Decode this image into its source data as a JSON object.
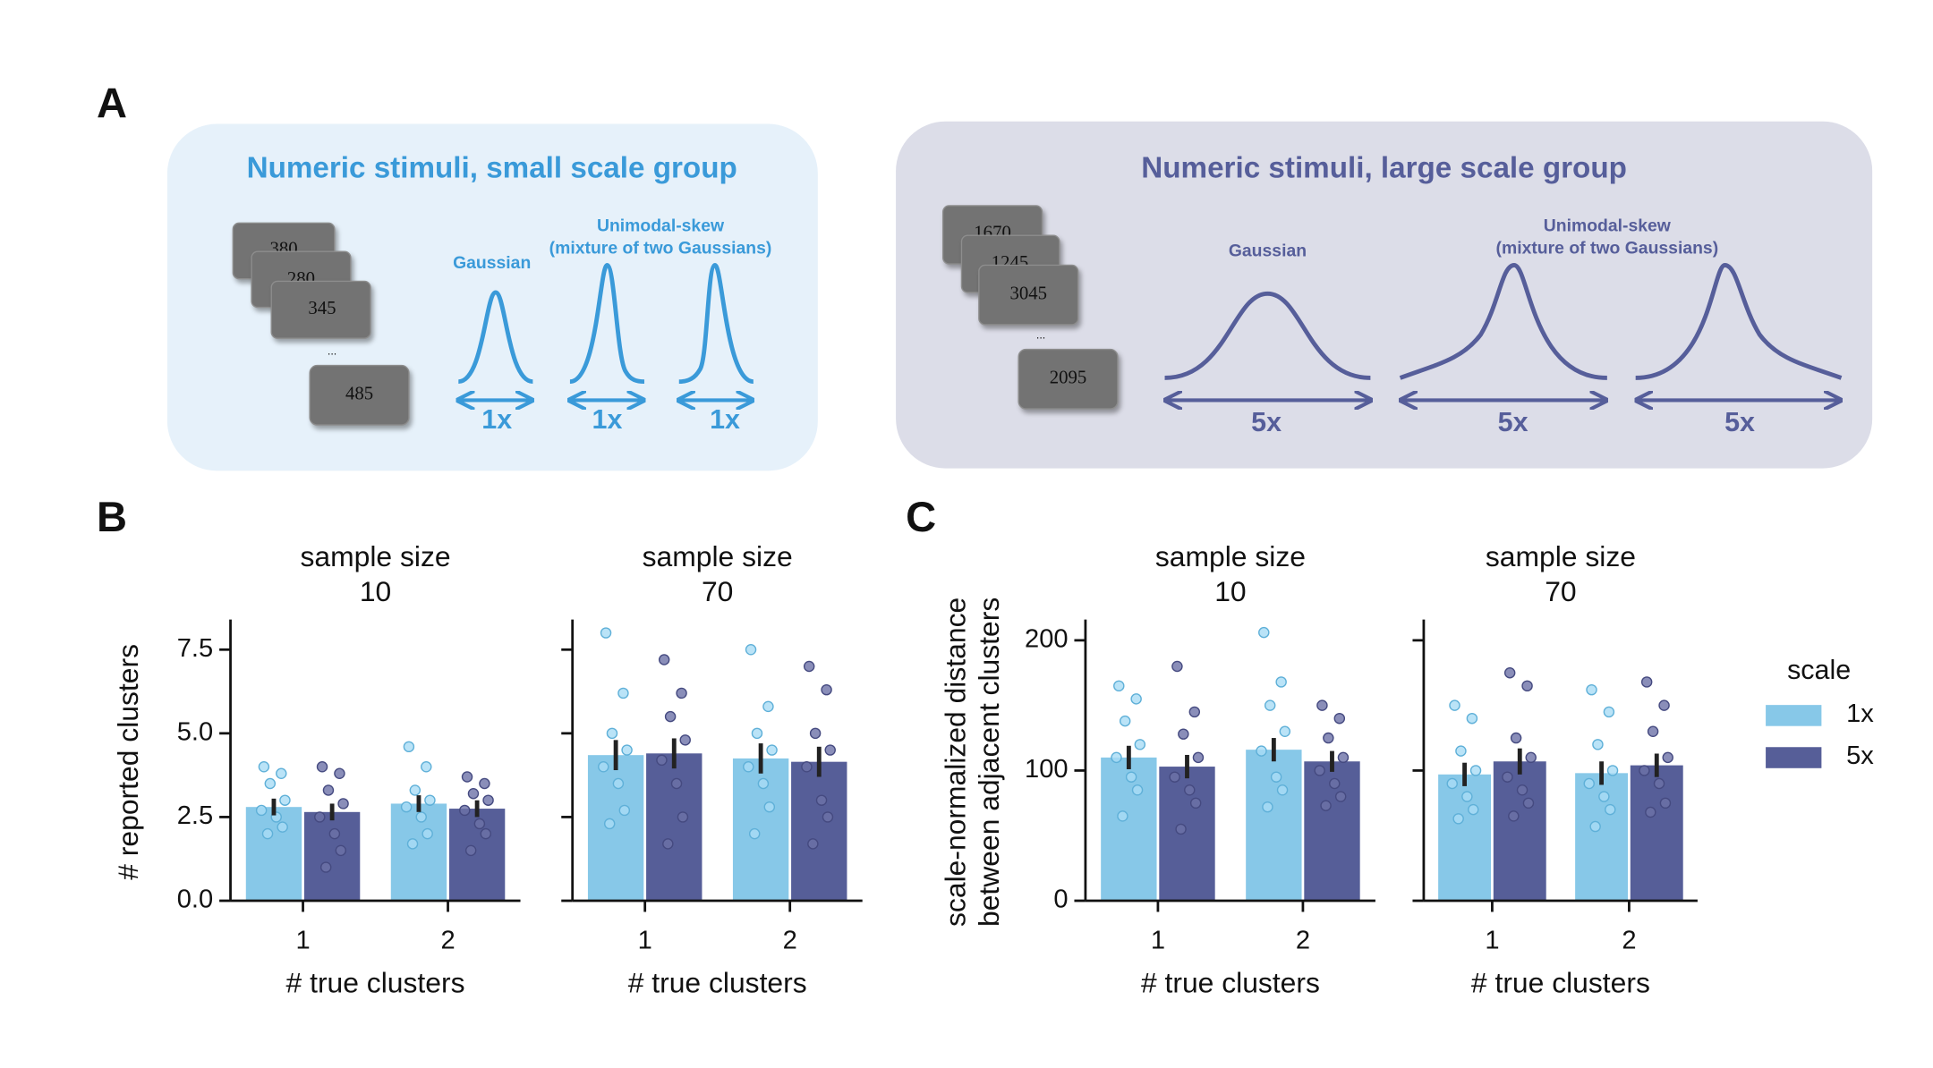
{
  "panel_labels": [
    "A",
    "B",
    "C"
  ],
  "diagram": {
    "small": {
      "title": "Numeric stimuli, small scale group",
      "cards": [
        "380",
        "280",
        "345",
        "485"
      ],
      "ellipsis": "...",
      "gaussian": "Gaussian",
      "skew": [
        "Unimodal-skew",
        "(mixture of two Gaussians)"
      ],
      "scales": [
        "1x",
        "1x",
        "1x"
      ]
    },
    "large": {
      "title": "Numeric stimuli, large scale group",
      "cards": [
        "1670",
        "1245",
        "3045",
        "2095"
      ],
      "ellipsis": "...",
      "gaussian": "Gaussian",
      "skew": [
        "Unimodal-skew",
        "(mixture of two Gaussians)"
      ],
      "scales": [
        "5x",
        "5x",
        "5x"
      ]
    }
  },
  "legend": {
    "title": "scale"
  },
  "chart_data": [
    {
      "type": "bar",
      "title": "sample size",
      "subtitle": "10",
      "xlabel": "# true clusters",
      "ylabel": [
        "# reported clusters"
      ],
      "categories": [
        "1",
        "2"
      ],
      "ylim": [
        0,
        8.4
      ],
      "yticks": [
        {
          "value": 0,
          "label": "0.0"
        },
        2.5,
        {
          "value": 5,
          "label": "5.0"
        },
        7.5
      ],
      "ytick_labels": true,
      "series": [
        {
          "name": "1x",
          "color": "#87c8e8",
          "values": [
            2.8,
            2.9
          ],
          "errors": [
            0.25,
            0.25
          ],
          "points": [
            [
              4.0,
              3.8,
              3.5,
              3.0,
              2.7,
              2.5,
              2.2,
              2.0
            ],
            [
              4.6,
              4.0,
              3.3,
              3.0,
              2.8,
              2.5,
              2.0,
              1.7
            ]
          ]
        },
        {
          "name": "5x",
          "color": "#565e98",
          "values": [
            2.65,
            2.75
          ],
          "errors": [
            0.25,
            0.25
          ],
          "points": [
            [
              4.0,
              3.8,
              3.3,
              2.9,
              2.5,
              2.0,
              1.5,
              1.0
            ],
            [
              3.7,
              3.5,
              3.2,
              3.0,
              2.7,
              2.3,
              2.0,
              1.5
            ]
          ]
        }
      ]
    },
    {
      "type": "bar",
      "title": "sample size",
      "subtitle": "70",
      "xlabel": "# true clusters",
      "categories": [
        "1",
        "2"
      ],
      "ylim": [
        0,
        8.4
      ],
      "yticks": [
        0,
        2.5,
        5,
        7.5
      ],
      "ytick_labels": false,
      "series": [
        {
          "name": "1x",
          "color": "#87c8e8",
          "values": [
            4.35,
            4.25
          ],
          "errors": [
            0.45,
            0.45
          ],
          "points": [
            [
              8.0,
              6.2,
              5.0,
              4.5,
              4.0,
              3.5,
              2.7,
              2.3
            ],
            [
              7.5,
              5.8,
              5.0,
              4.5,
              4.0,
              3.5,
              2.8,
              2.0
            ]
          ]
        },
        {
          "name": "5x",
          "color": "#565e98",
          "values": [
            4.4,
            4.15
          ],
          "errors": [
            0.45,
            0.45
          ],
          "points": [
            [
              7.2,
              6.2,
              5.5,
              4.8,
              4.2,
              3.5,
              2.5,
              1.7
            ],
            [
              7.0,
              6.3,
              5.0,
              4.5,
              4.0,
              3.0,
              2.5,
              1.7
            ]
          ]
        }
      ]
    },
    {
      "type": "bar",
      "title": "sample size",
      "subtitle": "10",
      "xlabel": "# true clusters",
      "ylabel": [
        "scale-normalized distance",
        "between adjacent clusters"
      ],
      "categories": [
        "1",
        "2"
      ],
      "ylim": [
        0,
        216
      ],
      "yticks": [
        0,
        100,
        200
      ],
      "ytick_labels": true,
      "series": [
        {
          "name": "1x",
          "color": "#87c8e8",
          "values": [
            110,
            116
          ],
          "errors": [
            9,
            9
          ],
          "points": [
            [
              165,
              155,
              138,
              120,
              110,
              95,
              85,
              65
            ],
            [
              206,
              168,
              150,
              130,
              115,
              95,
              85,
              72
            ]
          ]
        },
        {
          "name": "5x",
          "color": "#565e98",
          "values": [
            103,
            107
          ],
          "errors": [
            9,
            8
          ],
          "points": [
            [
              180,
              145,
              128,
              110,
              95,
              85,
              75,
              55
            ],
            [
              150,
              140,
              125,
              110,
              100,
              90,
              80,
              73
            ]
          ]
        }
      ]
    },
    {
      "type": "bar",
      "title": "sample size",
      "subtitle": "70",
      "xlabel": "# true clusters",
      "categories": [
        "1",
        "2"
      ],
      "ylim": [
        0,
        216
      ],
      "yticks": [
        0,
        100,
        200
      ],
      "ytick_labels": false,
      "series": [
        {
          "name": "1x",
          "color": "#87c8e8",
          "values": [
            97,
            98
          ],
          "errors": [
            9,
            9
          ],
          "points": [
            [
              150,
              140,
              115,
              100,
              90,
              80,
              70,
              63
            ],
            [
              162,
              145,
              120,
              100,
              90,
              80,
              70,
              57
            ]
          ]
        },
        {
          "name": "5x",
          "color": "#565e98",
          "values": [
            107,
            104
          ],
          "errors": [
            10,
            9
          ],
          "points": [
            [
              175,
              165,
              125,
              110,
              95,
              85,
              75,
              65
            ],
            [
              168,
              150,
              130,
              110,
              100,
              90,
              75,
              68
            ]
          ]
        }
      ]
    }
  ]
}
